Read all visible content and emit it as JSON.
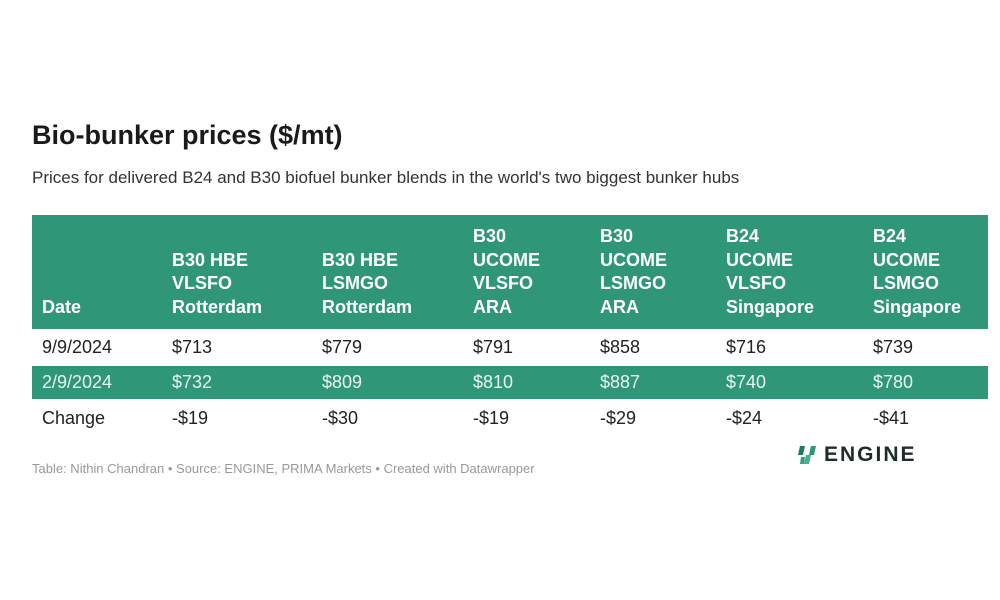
{
  "chart_data": {
    "type": "table",
    "title": "Bio-bunker prices ($/mt)",
    "subtitle": "Prices for delivered B24 and B30 biofuel bunker blends in the world's two biggest bunker hubs",
    "columns": [
      [
        "Date"
      ],
      [
        "B30 HBE",
        "VLSFO",
        "Rotterdam"
      ],
      [
        "B30 HBE",
        "LSMGO",
        "Rotterdam"
      ],
      [
        "B30",
        "UCOME",
        "VLSFO",
        "ARA"
      ],
      [
        "B30",
        "UCOME",
        "LSMGO",
        "ARA"
      ],
      [
        "B24",
        "UCOME",
        "VLSFO",
        "Singapore"
      ],
      [
        "B24",
        "UCOME",
        "LSMGO",
        "Singapore"
      ]
    ],
    "rows": [
      [
        "9/9/2024",
        "$713",
        "$779",
        "$791",
        "$858",
        "$716",
        "$739"
      ],
      [
        "2/9/2024",
        "$732",
        "$809",
        "$810",
        "$887",
        "$740",
        "$780"
      ],
      [
        "Change",
        "-$19",
        "-$30",
        "-$19",
        "-$29",
        "-$24",
        "-$41"
      ]
    ],
    "footer": "Table: Nithin Chandran • Source: ENGINE, PRIMA Markets • Created with Datawrapper",
    "logo": "ENGINE",
    "accent": "#2f9777"
  }
}
